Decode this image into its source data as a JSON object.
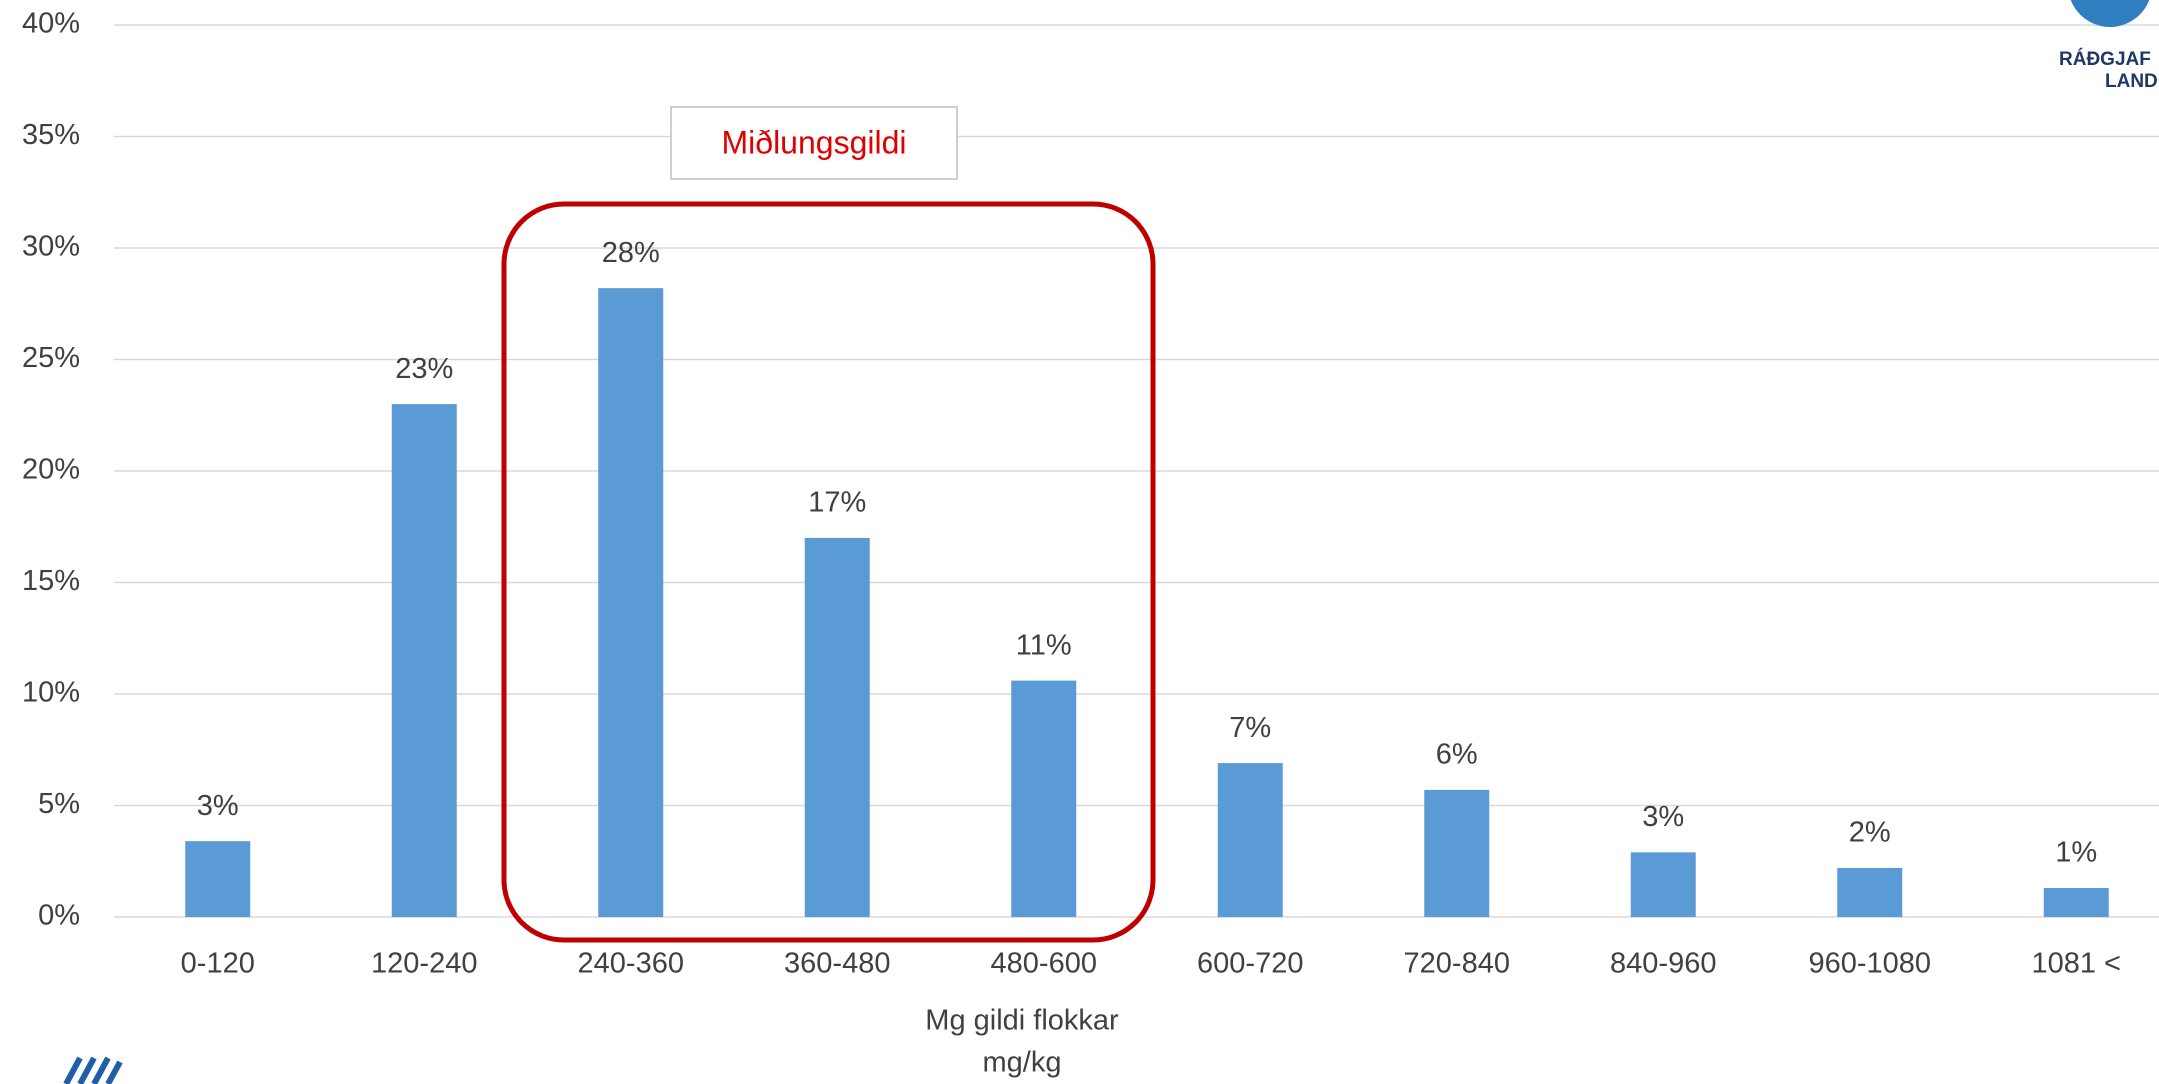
{
  "chart_data": {
    "type": "bar",
    "categories": [
      "0-120",
      "120-240",
      "240-360",
      "360-480",
      "480-600",
      "600-720",
      "720-840",
      "840-960",
      "960-1080",
      "1081 <"
    ],
    "values": [
      3.4,
      23,
      28.2,
      17,
      10.6,
      6.9,
      5.7,
      2.9,
      2.2,
      1.3
    ],
    "value_labels": [
      "3%",
      "23%",
      "28%",
      "17%",
      "11%",
      "7%",
      "6%",
      "3%",
      "2%",
      "1%"
    ],
    "color": "#5b9bd5",
    "xlabel": [
      "Mg gildi flokkar",
      "mg/kg"
    ],
    "annotation": "Miðlungsgildi",
    "logo_text": [
      "RÁÐGJAF",
      "LAND"
    ],
    "ylim": [
      0,
      40
    ],
    "yticks": [
      {
        "value": 0,
        "label": "0%"
      },
      {
        "value": 5,
        "label": "5%"
      },
      {
        "value": 10,
        "label": "10%"
      },
      {
        "value": 15,
        "label": "15%"
      },
      {
        "value": 20,
        "label": "20%"
      },
      {
        "value": 25,
        "label": "25%"
      },
      {
        "value": 30,
        "label": "30%"
      },
      {
        "value": 35,
        "label": "35%"
      },
      {
        "value": 40,
        "label": "40%"
      }
    ],
    "grid": true
  }
}
